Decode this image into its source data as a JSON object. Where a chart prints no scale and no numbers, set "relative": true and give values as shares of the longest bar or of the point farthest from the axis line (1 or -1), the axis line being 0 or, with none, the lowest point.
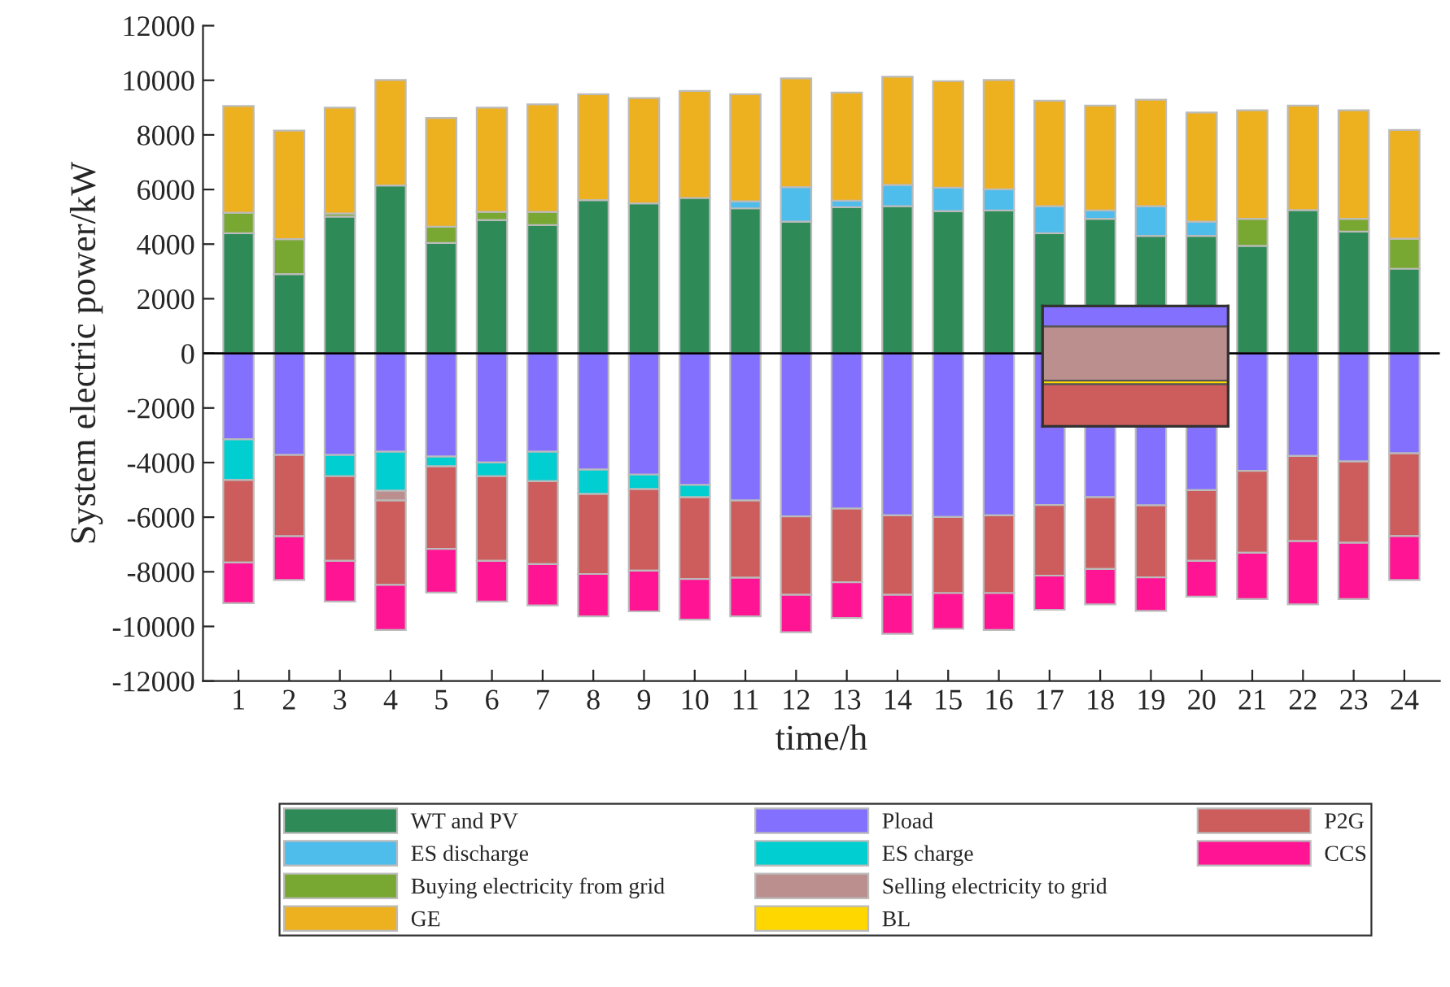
{
  "chart_data": [
    {
      "type": "bar",
      "stacked": true,
      "xlabel": "time/h",
      "ylabel": "System electric power/kW",
      "categories": [
        "1",
        "2",
        "3",
        "4",
        "5",
        "6",
        "7",
        "8",
        "9",
        "10",
        "11",
        "12",
        "13",
        "14",
        "15",
        "16",
        "17",
        "18",
        "19",
        "20",
        "21",
        "22",
        "23",
        "24"
      ],
      "series": [
        {
          "name": "WT and PV",
          "color": "#2e8b57",
          "values": [
            4400,
            2900,
            5010,
            6150,
            4040,
            4880,
            4700,
            5610,
            5490,
            5690,
            5310,
            4820,
            5350,
            5390,
            5210,
            5230,
            4400,
            4930,
            4300,
            4300,
            3940,
            5250,
            4460,
            3100
          ]
        },
        {
          "name": "ES discharge",
          "color": "#4fbdec",
          "values": [
            null,
            null,
            null,
            null,
            null,
            null,
            null,
            null,
            null,
            null,
            260,
            1270,
            240,
            780,
            860,
            780,
            990,
            300,
            1090,
            520,
            null,
            null,
            null,
            null
          ]
        },
        {
          "name": "Buying electricity from grid",
          "color": "#78a832",
          "values": [
            750,
            1280,
            110,
            null,
            600,
            300,
            480,
            null,
            null,
            null,
            null,
            null,
            null,
            null,
            null,
            null,
            null,
            null,
            null,
            null,
            990,
            null,
            470,
            1100
          ]
        },
        {
          "name": "GE",
          "color": "#edb120",
          "values": [
            3910,
            3980,
            3880,
            3860,
            3980,
            3820,
            3940,
            3880,
            3860,
            3920,
            3920,
            3980,
            3960,
            3960,
            3900,
            4000,
            3860,
            3840,
            3900,
            4000,
            3970,
            3820,
            3970,
            3980
          ]
        },
        {
          "name": "Pload",
          "color": "#8470ff",
          "values": [
            -3150,
            -3720,
            -3720,
            -3600,
            -3780,
            -4000,
            -3600,
            -4260,
            -4440,
            -4820,
            -5390,
            -5970,
            -5690,
            -5930,
            -5990,
            -5930,
            -5550,
            -5270,
            -5570,
            -5010,
            -4300,
            -3760,
            -3960,
            -3660
          ]
        },
        {
          "name": "ES charge",
          "color": "#00ced1",
          "values": [
            -1490,
            null,
            -780,
            -1430,
            -360,
            -500,
            -1080,
            -890,
            -530,
            -450,
            null,
            null,
            null,
            null,
            null,
            null,
            null,
            null,
            null,
            null,
            null,
            null,
            null,
            null
          ]
        },
        {
          "name": "Selling electricity to grid",
          "color": "#bc8f8f",
          "values": [
            null,
            null,
            null,
            -360,
            null,
            null,
            null,
            null,
            null,
            null,
            null,
            null,
            null,
            null,
            null,
            null,
            null,
            null,
            null,
            null,
            null,
            null,
            null,
            null
          ]
        },
        {
          "name": "BL",
          "color": "#ffd700",
          "values": [
            null,
            null,
            null,
            null,
            null,
            null,
            null,
            null,
            null,
            null,
            null,
            null,
            null,
            null,
            null,
            null,
            null,
            null,
            null,
            null,
            null,
            null,
            null,
            null
          ]
        },
        {
          "name": "P2G",
          "color": "#cd5c5c",
          "values": [
            -3020,
            -2980,
            -3100,
            -3090,
            -3020,
            -3100,
            -3040,
            -2930,
            -2990,
            -2990,
            -2830,
            -2870,
            -2690,
            -2910,
            -2790,
            -2850,
            -2590,
            -2630,
            -2630,
            -2590,
            -3000,
            -3120,
            -2980,
            -3030
          ]
        },
        {
          "name": "CCS",
          "color": "#ff1493",
          "values": [
            -1490,
            -1600,
            -1490,
            -1650,
            -1600,
            -1490,
            -1510,
            -1550,
            -1490,
            -1490,
            -1410,
            -1370,
            -1310,
            -1430,
            -1310,
            -1350,
            -1250,
            -1290,
            -1230,
            -1310,
            -1700,
            -2310,
            -2060,
            -1610
          ]
        }
      ],
      "ylim": [
        -12000,
        12000
      ],
      "yticks": [
        -12000,
        -10000,
        -8000,
        -6000,
        -4000,
        -2000,
        0,
        2000,
        4000,
        6000,
        8000,
        10000,
        12000
      ],
      "ref_lines": [
        {
          "axis": "y",
          "value": 0,
          "color": "#000000"
        }
      ],
      "grid": false,
      "legend": "bottom"
    },
    {
      "type": "bar",
      "stacked": true,
      "relative": true,
      "tick_labels": false,
      "categories": [
        null
      ],
      "series": [
        {
          "color": "#8470ff",
          "values": [
            -0.17
          ]
        },
        {
          "color": "#bc8f8f",
          "values": [
            -0.45
          ]
        },
        {
          "color": "#ffd700",
          "values": [
            -0.03
          ]
        },
        {
          "color": "#cd5c5c",
          "values": [
            -0.35
          ]
        }
      ]
    }
  ]
}
